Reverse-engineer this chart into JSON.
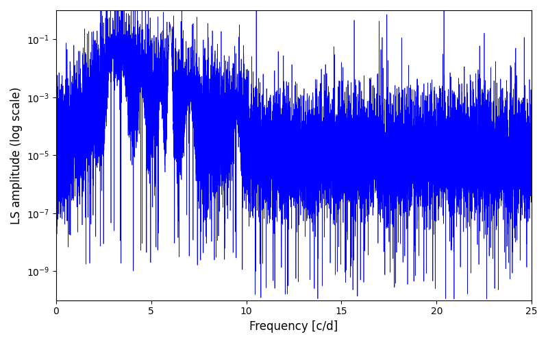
{
  "title": "",
  "xlabel": "Frequency [c/d]",
  "ylabel": "LS amplitude (log scale)",
  "xlim": [
    0,
    25
  ],
  "ylim": [
    1e-10,
    1.0
  ],
  "line_color": "#0000FF",
  "line_width": 0.5,
  "figsize": [
    8.0,
    5.0
  ],
  "dpi": 100,
  "background_color": "#ffffff",
  "yticks": [
    1e-09,
    1e-07,
    1e-05,
    0.001,
    0.1
  ]
}
